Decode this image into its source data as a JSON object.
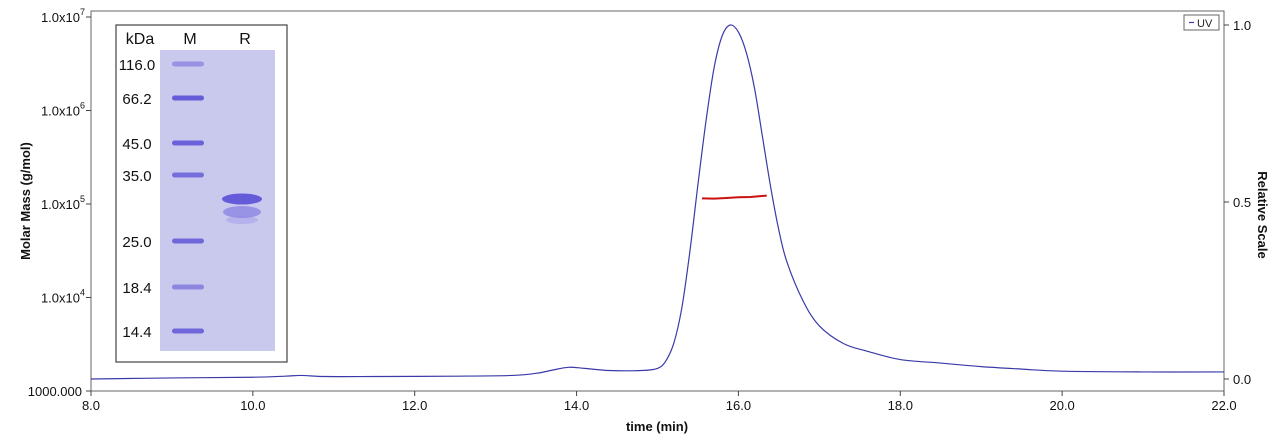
{
  "chart_data": {
    "type": "line",
    "xlabel": "time (min)",
    "ylabel_left": "Molar Mass (g/mol)",
    "ylabel_right": "Relative Scale",
    "xlim": [
      8.0,
      22.0
    ],
    "x_ticks": [
      "8.0",
      "10.0",
      "12.0",
      "14.0",
      "16.0",
      "18.0",
      "20.0",
      "22.0"
    ],
    "x_tick_values": [
      8,
      10,
      12,
      14,
      16,
      18,
      20,
      22
    ],
    "y_left_scale": "log",
    "y_left_lim": [
      1000,
      10000000
    ],
    "y_left_ticks": [
      {
        "value": 1000,
        "base": "1000.000",
        "exp": ""
      },
      {
        "value": 10000,
        "base": "1.0x10",
        "exp": "4"
      },
      {
        "value": 100000,
        "base": "1.0x10",
        "exp": "5"
      },
      {
        "value": 1000000,
        "base": "1.0x10",
        "exp": "6"
      },
      {
        "value": 10000000,
        "base": "1.0x10",
        "exp": "7"
      }
    ],
    "y_right_lim": [
      -0.02,
      1.02
    ],
    "y_right_ticks": [
      {
        "value": 0.0,
        "label": "0.0"
      },
      {
        "value": 0.5,
        "label": "0.5"
      },
      {
        "value": 1.0,
        "label": "1.0"
      }
    ],
    "legend": {
      "entries": [
        "UV"
      ],
      "placement": "top-right"
    },
    "series": [
      {
        "name": "UV",
        "color": "#3a3aa8",
        "axis": "right",
        "x": [
          8.0,
          9.0,
          10.0,
          10.4,
          10.6,
          10.9,
          11.5,
          12.5,
          13.2,
          13.5,
          13.7,
          13.9,
          14.1,
          14.4,
          14.8,
          15.0,
          15.1,
          15.2,
          15.3,
          15.4,
          15.5,
          15.6,
          15.7,
          15.8,
          15.9,
          16.0,
          16.1,
          16.2,
          16.3,
          16.4,
          16.5,
          16.6,
          16.8,
          17.0,
          17.3,
          17.6,
          18.0,
          18.5,
          19.0,
          19.5,
          20.0,
          21.0,
          22.0
        ],
        "y": [
          0.0,
          0.003,
          0.005,
          0.008,
          0.01,
          0.007,
          0.007,
          0.008,
          0.01,
          0.016,
          0.025,
          0.033,
          0.03,
          0.024,
          0.024,
          0.03,
          0.05,
          0.1,
          0.2,
          0.36,
          0.55,
          0.73,
          0.88,
          0.97,
          1.0,
          0.98,
          0.92,
          0.82,
          0.68,
          0.54,
          0.42,
          0.33,
          0.22,
          0.15,
          0.1,
          0.078,
          0.055,
          0.045,
          0.035,
          0.028,
          0.022,
          0.02,
          0.02
        ]
      },
      {
        "name": "Molar Mass",
        "color": "#cc1111",
        "axis": "left",
        "x": [
          15.55,
          15.7,
          15.85,
          16.0,
          16.15,
          16.35
        ],
        "y": [
          115000,
          114000,
          116000,
          118000,
          119000,
          123000
        ]
      }
    ]
  },
  "inset_gel": {
    "header_kda": "kDa",
    "header_marker": "M",
    "header_sample": "R",
    "lane_color": "#c9c9ee",
    "band_color": "#5a4fd6",
    "marker_bands": [
      {
        "label": "116.0",
        "intensity": 0.45
      },
      {
        "label": "66.2",
        "intensity": 0.9
      },
      {
        "label": "45.0",
        "intensity": 0.85
      },
      {
        "label": "35.0",
        "intensity": 0.75
      },
      {
        "label": "25.0",
        "intensity": 0.8
      },
      {
        "label": "18.4",
        "intensity": 0.55
      },
      {
        "label": "14.4",
        "intensity": 0.8
      }
    ]
  }
}
